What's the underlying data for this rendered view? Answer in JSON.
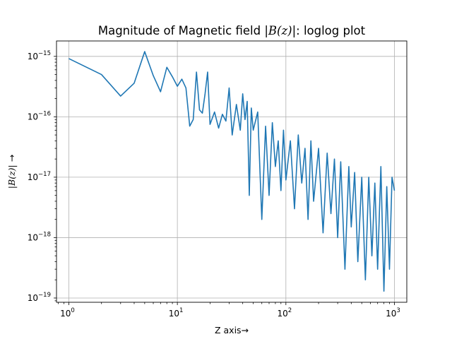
{
  "chart_data": {
    "type": "line",
    "title_prefix": "Magnitude of Magnetic field |",
    "title_math": "B(z)",
    "title_suffix": "|: loglog plot",
    "xlabel": "Z axis→",
    "ylabel_math": "|B(z)|",
    "ylabel_suffix": " →",
    "xscale": "log",
    "yscale": "log",
    "xlim": [
      0.77,
      1300
    ],
    "ylim": [
      8.5e-20,
      1.8e-15
    ],
    "grid": true,
    "x_ticks": [
      1,
      10,
      100,
      1000
    ],
    "x_tick_labels": [
      "10^0",
      "10^1",
      "10^2",
      "10^3"
    ],
    "y_ticks": [
      1e-19,
      1e-18,
      1e-17,
      1e-16,
      1e-15
    ],
    "y_tick_labels": [
      "10^-19",
      "10^-18",
      "10^-17",
      "10^-16",
      "10^-15"
    ],
    "series": [
      {
        "color": "#1f77b4",
        "x": [
          1,
          2,
          3,
          4,
          5,
          6,
          7,
          8,
          9,
          10,
          11,
          12,
          13,
          14,
          15,
          16,
          17,
          18,
          19,
          20,
          22,
          24,
          26,
          28,
          30,
          32,
          35,
          38,
          40,
          42,
          44,
          46,
          48,
          50,
          55,
          60,
          65,
          70,
          75,
          80,
          85,
          90,
          95,
          100,
          110,
          120,
          130,
          140,
          150,
          160,
          170,
          180,
          200,
          220,
          240,
          260,
          280,
          300,
          320,
          350,
          380,
          400,
          430,
          460,
          500,
          540,
          580,
          620,
          660,
          700,
          750,
          800,
          850,
          900,
          950,
          1000
        ],
        "y": [
          9.2e-16,
          5e-16,
          2.2e-16,
          3.6e-16,
          1.2e-15,
          4.8e-16,
          2.6e-16,
          6.6e-16,
          4.6e-16,
          3.2e-16,
          4.2e-16,
          3e-16,
          7e-17,
          9e-17,
          5.5e-16,
          1.3e-16,
          1.15e-16,
          2.4e-16,
          5.5e-16,
          7.5e-17,
          1.2e-16,
          6.5e-17,
          1.1e-16,
          8.5e-17,
          3e-16,
          5e-17,
          1.6e-16,
          6e-17,
          2.4e-16,
          9e-17,
          1.8e-16,
          5e-18,
          1.4e-16,
          6e-17,
          1.2e-16,
          2e-18,
          7e-17,
          5e-18,
          8e-17,
          1.5e-17,
          4e-17,
          6e-18,
          6e-17,
          9e-18,
          4e-17,
          3e-18,
          5e-17,
          8e-18,
          3e-17,
          2e-18,
          4e-17,
          4e-18,
          3e-17,
          1.2e-18,
          2.5e-17,
          2.5e-18,
          2e-17,
          1e-18,
          1.8e-17,
          3e-19,
          1.5e-17,
          1.5e-18,
          1.2e-17,
          4e-19,
          1e-17,
          2e-19,
          1e-17,
          5e-19,
          8e-18,
          3e-19,
          1.5e-17,
          1.3e-19,
          7e-18,
          3e-19,
          1e-17,
          6e-18
        ]
      }
    ]
  }
}
